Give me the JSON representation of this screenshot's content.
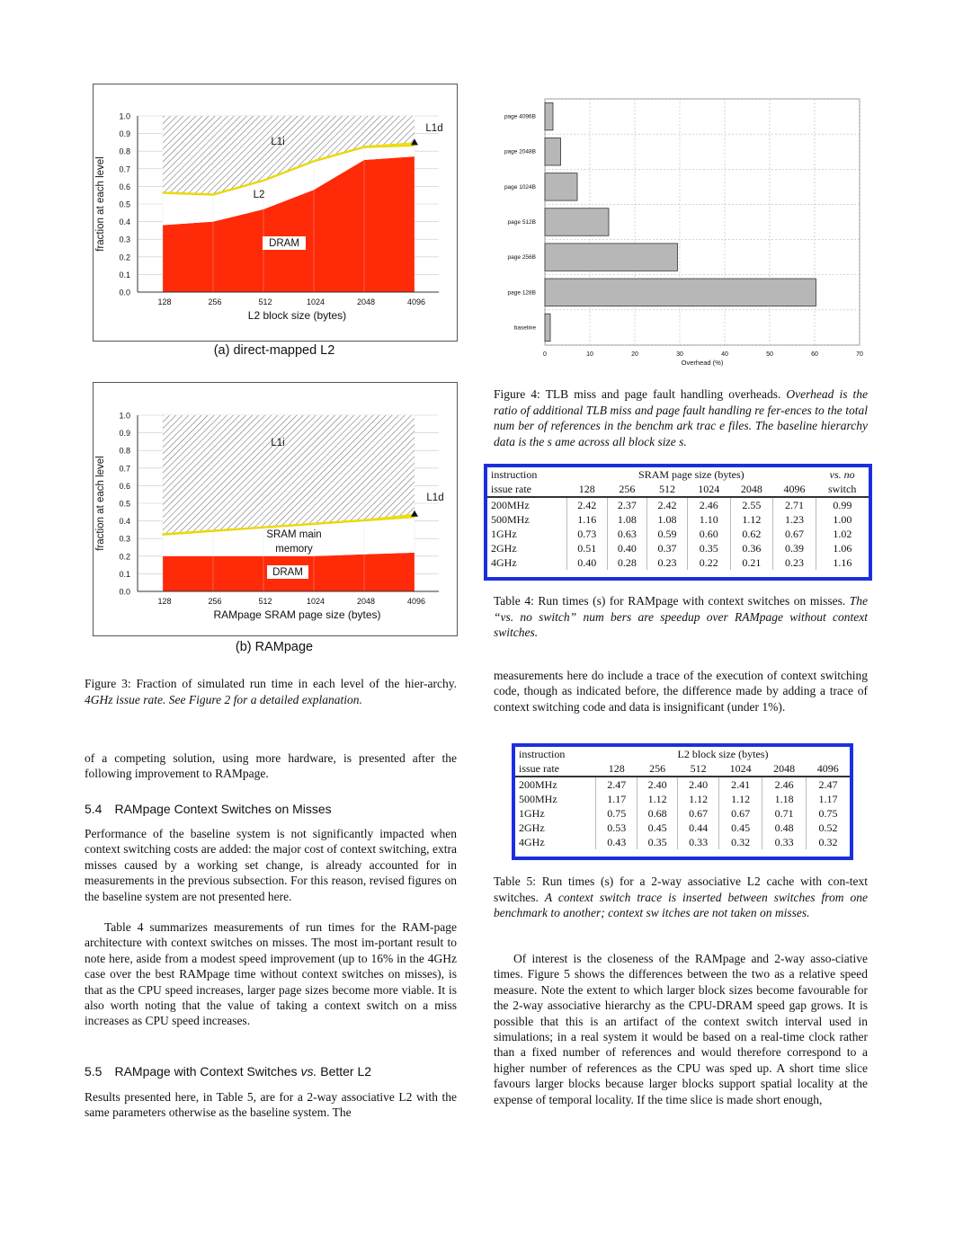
{
  "figure3": {
    "panel_a": {
      "subcaption": "(a) direct-mapped L2",
      "ylabel": "fraction at each level",
      "xlabel": "L2 block size (bytes)",
      "region_labels": [
        "L1i",
        "L2",
        "DRAM",
        "L1d"
      ],
      "yticks": [
        "0.0",
        "0.1",
        "0.2",
        "0.3",
        "0.4",
        "0.5",
        "0.6",
        "0.7",
        "0.8",
        "0.9",
        "1.0"
      ]
    },
    "panel_b": {
      "subcaption": "(b) RAMpage",
      "ylabel": "fraction at each level",
      "xlabel": "RAMpage SRAM page size (bytes)",
      "region_labels": [
        "L1i",
        "SRAM main",
        "memory",
        "DRAM",
        "L1d"
      ],
      "yticks": [
        "0.0",
        "0.1",
        "0.2",
        "0.3",
        "0.4",
        "0.5",
        "0.6",
        "0.7",
        "0.8",
        "0.9",
        "1.0"
      ]
    },
    "caption_lead": "Figure 3: Fraction of simulated run time in each level of the hier-archy.",
    "caption_ital": "4GHz issue rate. See Figure 2 for a detailed explanation."
  },
  "chart_data": [
    {
      "type": "area",
      "x": [
        "128",
        "256",
        "512",
        "1024",
        "2048",
        "4096"
      ],
      "series": [
        {
          "name": "DRAM",
          "values": [
            0.38,
            0.4,
            0.47,
            0.58,
            0.75,
            0.77
          ]
        },
        {
          "name": "L2",
          "values": [
            0.18,
            0.15,
            0.16,
            0.16,
            0.07,
            0.06
          ]
        },
        {
          "name": "L1d",
          "values": [
            0.01,
            0.01,
            0.01,
            0.01,
            0.01,
            0.02
          ]
        },
        {
          "name": "L1i",
          "values": [
            0.43,
            0.44,
            0.36,
            0.25,
            0.17,
            0.15
          ]
        }
      ],
      "xlabel": "L2 block size (bytes)",
      "ylabel": "fraction at each level",
      "ylim": [
        0,
        1.0
      ],
      "grid": true
    },
    {
      "type": "area",
      "x": [
        "128",
        "256",
        "512",
        "1024",
        "2048",
        "4096"
      ],
      "series": [
        {
          "name": "DRAM",
          "values": [
            0.2,
            0.2,
            0.2,
            0.2,
            0.21,
            0.22
          ]
        },
        {
          "name": "SRAM main memory",
          "values": [
            0.12,
            0.14,
            0.16,
            0.18,
            0.19,
            0.2
          ]
        },
        {
          "name": "L1d",
          "values": [
            0.01,
            0.01,
            0.01,
            0.01,
            0.01,
            0.02
          ]
        },
        {
          "name": "L1i",
          "values": [
            0.67,
            0.65,
            0.63,
            0.61,
            0.59,
            0.56
          ]
        }
      ],
      "xlabel": "RAMpage SRAM page size (bytes)",
      "ylabel": "fraction at each level",
      "ylim": [
        0,
        1.0
      ],
      "grid": true
    },
    {
      "type": "bar",
      "orientation": "horizontal",
      "categories": [
        "page 4096B",
        "page 2048B",
        "page 1024B",
        "page 512B",
        "page 256B",
        "page 128B",
        "baseline"
      ],
      "values": [
        1.8,
        3.5,
        7.2,
        14.2,
        29.5,
        60.3,
        1.2
      ],
      "xlabel": "Overhead (%)",
      "xticks": [
        "0",
        "10",
        "20",
        "30",
        "40",
        "50",
        "60",
        "70"
      ],
      "xlim": [
        0,
        70
      ],
      "grid": true
    }
  ],
  "figure4": {
    "caption_lead": "Figure 4: TLB miss and page fault handling overheads.",
    "caption_ital": "Overhead is the ratio of additional TLB miss and page fault handling re fer-ences to the total num ber of references in the benchm ark trac e files. The baseline hierarchy data is the s ame across all block size s."
  },
  "table4": {
    "head1": [
      "instruction",
      "SRAM page size (bytes)",
      "vs. no"
    ],
    "head2": [
      "issue rate",
      "128",
      "256",
      "512",
      "1024",
      "2048",
      "4096",
      "switch"
    ],
    "rows": [
      [
        "200MHz",
        "2.42",
        "2.37",
        "2.42",
        "2.46",
        "2.55",
        "2.71",
        "0.99"
      ],
      [
        "500MHz",
        "1.16",
        "1.08",
        "1.08",
        "1.10",
        "1.12",
        "1.23",
        "1.00"
      ],
      [
        "1GHz",
        "0.73",
        "0.63",
        "0.59",
        "0.60",
        "0.62",
        "0.67",
        "1.02"
      ],
      [
        "2GHz",
        "0.51",
        "0.40",
        "0.37",
        "0.35",
        "0.36",
        "0.39",
        "1.06"
      ],
      [
        "4GHz",
        "0.40",
        "0.28",
        "0.23",
        "0.22",
        "0.21",
        "0.23",
        "1.16"
      ]
    ],
    "caption_lead": "Table 4: Run times (s) for RAMpage with context switches on misses.",
    "caption_ital": "The “vs. no switch” num bers are speedup over RAMpage without context switches."
  },
  "table5": {
    "head1": [
      "instruction",
      "L2 block size (bytes)"
    ],
    "head2": [
      "issue rate",
      "128",
      "256",
      "512",
      "1024",
      "2048",
      "4096"
    ],
    "rows": [
      [
        "200MHz",
        "2.47",
        "2.40",
        "2.40",
        "2.41",
        "2.46",
        "2.47"
      ],
      [
        "500MHz",
        "1.17",
        "1.12",
        "1.12",
        "1.12",
        "1.18",
        "1.17"
      ],
      [
        "1GHz",
        "0.75",
        "0.68",
        "0.67",
        "0.67",
        "0.71",
        "0.75"
      ],
      [
        "2GHz",
        "0.53",
        "0.45",
        "0.44",
        "0.45",
        "0.48",
        "0.52"
      ],
      [
        "4GHz",
        "0.43",
        "0.35",
        "0.33",
        "0.32",
        "0.33",
        "0.32"
      ]
    ],
    "caption_lead": "Table 5: Run times (s) for a 2-way associative L2 cache with con-text switches.",
    "caption_ital": "A context switch trace is inserted between switches from one benchmark to another; context sw itches are not taken on misses."
  },
  "left_column": {
    "para_competing": "of a competing solution, using more hardware, is presented after the following improvement to RAMpage.",
    "section_54": "5.4 RAMpage Context Switches on Misses",
    "para_54a": "Performance of the baseline system is not significantly impacted when context switching costs are added: the major cost of context switching, extra misses caused by a working set change, is already accounted for in measurements in the previous subsection. For this reason, revised figures on the baseline system are not presented here.",
    "para_54b": "Table 4 summarizes measurements of run times for the RAM-page architecture with context switches on misses. The most im-portant result to note here, aside from a modest speed improvement (up to 16% in the 4GHz case over the best RAMpage time without context switches on misses), is that as the CPU speed increases, larger page sizes become more viable. It is also worth noting that the value of taking a context switch on a miss increases as CPU speed increases.",
    "section_55_pre": "5.5 RAMpage with Context Switches ",
    "section_55_vs": "vs.",
    "section_55_post": " Better L2",
    "para_55": "Results presented here, in Table 5, are for a 2-way associative L2 with the same parameters otherwise as the baseline system. The"
  },
  "right_column": {
    "para_measure": "measurements here do include a trace of the execution of context switching code, though as indicated before, the difference made by adding a trace of context switching code and data is insignificant (under 1%).",
    "para_interest": "Of interest is the closeness of the RAMpage and 2-way asso-ciative times. Figure 5 shows the differences between the two as a relative speed measure. Note the extent to which larger block sizes become favourable for the 2-way associative hierarchy as the CPU-DRAM speed gap grows. It is possible that this is an artifact of the context switch interval used in simulations; in a real system it would be based on a real-time clock rather than a fixed number of references and would therefore correspond to a higher number of references as the CPU was sped up. A short time slice favours larger blocks because larger blocks support spatial locality at the expense of temporal locality. If the time slice is made short enough,"
  }
}
